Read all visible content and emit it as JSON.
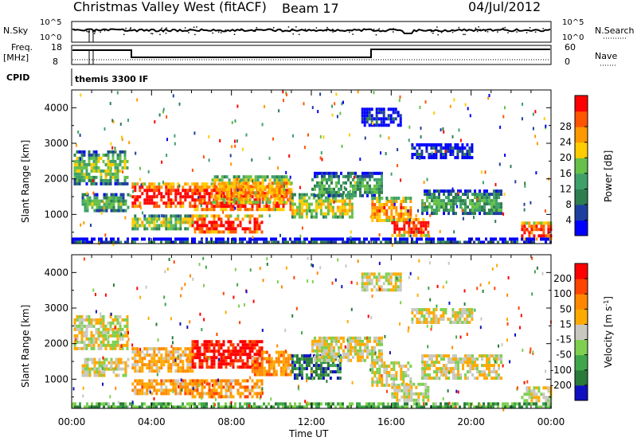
{
  "header": {
    "title": "Christmas Valley West (fitACF)",
    "beam": "Beam 17",
    "date": "04/Jul/2012"
  },
  "top_panels": {
    "nsky": {
      "label": "N.Sky",
      "left_ticks": [
        "10^5",
        "10^0"
      ],
      "right_label": "N.Search",
      "right_ticks": [
        "10^5",
        "10^0"
      ]
    },
    "freq": {
      "label_line1": "Freq.",
      "label_line2": "[MHz]",
      "left_ticks": [
        "18",
        "8"
      ],
      "right_label": "Nave",
      "right_ticks": [
        "60",
        "0"
      ]
    },
    "cpid": {
      "label": "CPID",
      "value": "themis 3300 IF"
    }
  },
  "chart_data": [
    {
      "type": "heatmap",
      "title": "",
      "parameter": "Power",
      "ylabel": "Slant Range [km]",
      "xlabel": "Time UT",
      "x_range_hours": [
        0,
        24
      ],
      "y_range_km": [
        180,
        4500
      ],
      "x_ticks": [
        "00:00",
        "04:00",
        "08:00",
        "12:00",
        "16:00",
        "20:00",
        "00:00"
      ],
      "y_ticks": [
        1000,
        2000,
        3000,
        4000
      ],
      "colorbar": {
        "label": "Power [dB]",
        "ticks": [
          "4",
          "8",
          "12",
          "16",
          "20",
          "24",
          "28"
        ],
        "colors": [
          "#0000ff",
          "#1f3fa0",
          "#2e7e50",
          "#3fa06a",
          "#66c04a",
          "#ffcc00",
          "#ff9900",
          "#ff5500",
          "#ff0000"
        ]
      },
      "regions": [
        {
          "t0": 0.1,
          "t1": 2.8,
          "r0": 1900,
          "r1": 2800,
          "level": 0.5
        },
        {
          "t0": 0.5,
          "t1": 2.8,
          "r0": 1100,
          "r1": 1600,
          "level": 0.45
        },
        {
          "t0": 3.0,
          "t1": 6.0,
          "r0": 1200,
          "r1": 1900,
          "level": 0.95
        },
        {
          "t0": 3.0,
          "t1": 6.0,
          "r0": 600,
          "r1": 1000,
          "level": 0.55
        },
        {
          "t0": 6.0,
          "t1": 9.5,
          "r0": 500,
          "r1": 1000,
          "level": 0.95
        },
        {
          "t0": 6.0,
          "t1": 11.0,
          "r0": 1100,
          "r1": 1900,
          "level": 0.9
        },
        {
          "t0": 7.0,
          "t1": 11.0,
          "r0": 1300,
          "r1": 2100,
          "level": 0.7
        },
        {
          "t0": 11.0,
          "t1": 14.0,
          "r0": 900,
          "r1": 1600,
          "level": 0.6
        },
        {
          "t0": 12.0,
          "t1": 15.5,
          "r0": 1500,
          "r1": 2200,
          "level": 0.4
        },
        {
          "t0": 15.0,
          "t1": 17.0,
          "r0": 800,
          "r1": 1500,
          "level": 0.75
        },
        {
          "t0": 16.0,
          "t1": 17.8,
          "r0": 450,
          "r1": 900,
          "level": 0.95
        },
        {
          "t0": 17.5,
          "t1": 21.5,
          "r0": 1000,
          "r1": 1700,
          "level": 0.4
        },
        {
          "t0": 14.5,
          "t1": 16.5,
          "r0": 3500,
          "r1": 4000,
          "level": 0.15
        },
        {
          "t0": 17.0,
          "t1": 20.0,
          "r0": 2600,
          "r1": 3000,
          "level": 0.15
        },
        {
          "t0": 22.5,
          "t1": 24.0,
          "r0": 300,
          "r1": 800,
          "level": 0.9
        },
        {
          "t0": 0.0,
          "t1": 24.0,
          "r0": 180,
          "r1": 350,
          "level": 0.2
        }
      ]
    },
    {
      "type": "heatmap",
      "title": "",
      "parameter": "Velocity",
      "ylabel": "Slant Range [km]",
      "xlabel": "Time UT",
      "x_range_hours": [
        0,
        24
      ],
      "y_range_km": [
        180,
        4500
      ],
      "x_ticks": [
        "00:00",
        "04:00",
        "08:00",
        "12:00",
        "16:00",
        "20:00",
        "00:00"
      ],
      "y_ticks": [
        1000,
        2000,
        3000,
        4000
      ],
      "colorbar": {
        "label_main": "Velocity [m s",
        "label_exp": "-1",
        "label_end": "]",
        "ticks": [
          "200",
          "100",
          "50",
          "15",
          "-15",
          "-50",
          "-100",
          "-200"
        ],
        "colors": [
          "#1010c0",
          "#2a7a3a",
          "#3fa64a",
          "#7fd050",
          "#c8c8c0",
          "#ffaa00",
          "#ff8800",
          "#ff4400",
          "#ff0000"
        ]
      },
      "regions": [
        {
          "t0": 0.1,
          "t1": 2.8,
          "r0": 1900,
          "r1": 2800,
          "level": 0.5
        },
        {
          "t0": 0.5,
          "t1": 2.8,
          "r0": 1100,
          "r1": 1600,
          "level": 0.5
        },
        {
          "t0": 3.0,
          "t1": 6.0,
          "r0": 1200,
          "r1": 1900,
          "level": 0.62
        },
        {
          "t0": 3.0,
          "t1": 6.0,
          "r0": 600,
          "r1": 1000,
          "level": 0.65
        },
        {
          "t0": 6.0,
          "t1": 9.5,
          "r0": 500,
          "r1": 1000,
          "level": 0.68
        },
        {
          "t0": 6.0,
          "t1": 9.5,
          "r0": 1300,
          "r1": 2100,
          "level": 0.95
        },
        {
          "t0": 9.0,
          "t1": 11.0,
          "r0": 1100,
          "r1": 1800,
          "level": 0.7
        },
        {
          "t0": 11.0,
          "t1": 13.5,
          "r0": 1000,
          "r1": 1700,
          "level": 0.15
        },
        {
          "t0": 12.0,
          "t1": 15.5,
          "r0": 1500,
          "r1": 2200,
          "level": 0.5
        },
        {
          "t0": 15.0,
          "t1": 17.0,
          "r0": 800,
          "r1": 1500,
          "level": 0.5
        },
        {
          "t0": 16.0,
          "t1": 17.8,
          "r0": 450,
          "r1": 900,
          "level": 0.5
        },
        {
          "t0": 17.5,
          "t1": 21.5,
          "r0": 1000,
          "r1": 1700,
          "level": 0.5
        },
        {
          "t0": 14.5,
          "t1": 16.5,
          "r0": 3500,
          "r1": 4000,
          "level": 0.5
        },
        {
          "t0": 17.0,
          "t1": 20.0,
          "r0": 2600,
          "r1": 3000,
          "level": 0.5
        },
        {
          "t0": 22.5,
          "t1": 24.0,
          "r0": 300,
          "r1": 800,
          "level": 0.5
        },
        {
          "t0": 0.0,
          "t1": 24.0,
          "r0": 180,
          "r1": 350,
          "level": 0.3
        }
      ]
    }
  ]
}
